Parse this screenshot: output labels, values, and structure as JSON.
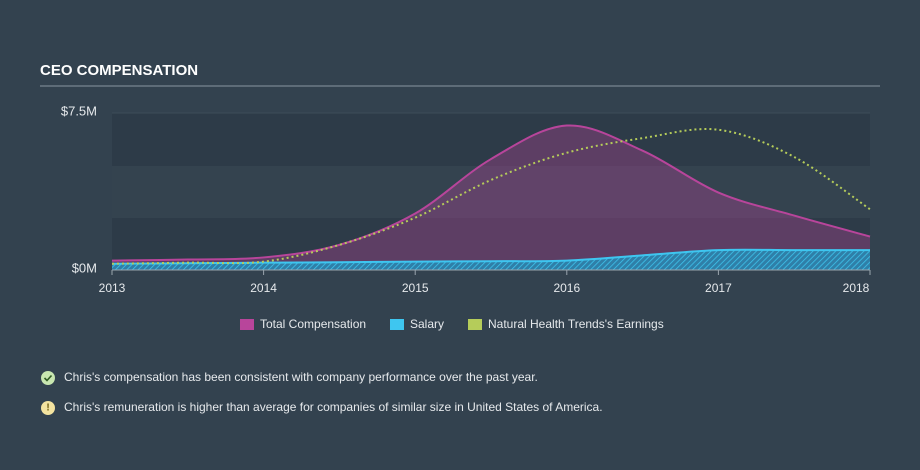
{
  "chart_data": {
    "type": "line",
    "title": "CEO COMPENSATION",
    "x": [
      2013,
      2013.5,
      2014,
      2014.5,
      2015,
      2015.5,
      2016,
      2016.5,
      2017,
      2017.5,
      2018
    ],
    "series": [
      {
        "name": "Total Compensation",
        "color": "#b8459b",
        "values": [
          0.45,
          0.5,
          0.6,
          1.2,
          2.7,
          5.3,
          6.9,
          5.7,
          3.7,
          2.6,
          1.6
        ]
      },
      {
        "name": "Salary",
        "color": "#3ec6f0",
        "values": [
          0.3,
          0.32,
          0.35,
          0.37,
          0.4,
          0.42,
          0.45,
          0.7,
          0.95,
          0.95,
          0.95
        ]
      },
      {
        "name": "Natural Health Trends's Earnings",
        "color": "#b5cc5a",
        "values": [
          0.3,
          0.35,
          0.4,
          1.2,
          2.5,
          4.3,
          5.6,
          6.3,
          6.7,
          5.4,
          2.9
        ]
      }
    ],
    "xlim": [
      2013,
      2018
    ],
    "xticks": [
      2013,
      2014,
      2015,
      2016,
      2017,
      2018
    ],
    "ylim": [
      0,
      7.5
    ],
    "yticks": [
      {
        "value": 0,
        "label": "$0M"
      },
      {
        "value": 7.5,
        "label": "$7.5M"
      }
    ]
  },
  "notes": [
    "Chris's compensation has been consistent with company performance over the past year.",
    "Chris's remuneration is higher than average for companies of similar size in United States of America."
  ]
}
